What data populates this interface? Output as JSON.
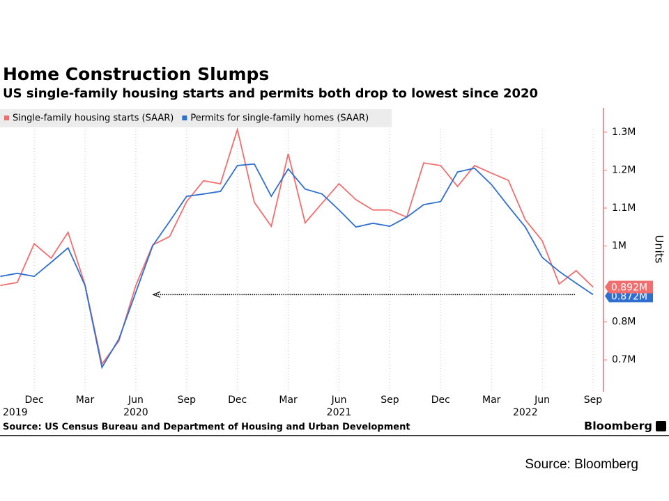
{
  "chart_data": {
    "type": "line",
    "title": "Home Construction Slumps",
    "subtitle": "US single-family housing starts and permits both drop to lowest since 2020",
    "y_axis_label": "Units",
    "source": "Source: US Census Bureau and Department of Housing and Urban Development",
    "brand": "Bloomberg",
    "footer_note": "Source: Bloomberg",
    "x": [
      "2019-10",
      "2019-11",
      "2019-12",
      "2020-01",
      "2020-02",
      "2020-03",
      "2020-04",
      "2020-05",
      "2020-06",
      "2020-07",
      "2020-08",
      "2020-09",
      "2020-10",
      "2020-11",
      "2020-12",
      "2021-01",
      "2021-02",
      "2021-03",
      "2021-04",
      "2021-05",
      "2021-06",
      "2021-07",
      "2021-08",
      "2021-09",
      "2021-10",
      "2021-11",
      "2021-12",
      "2022-01",
      "2022-02",
      "2022-03",
      "2022-04",
      "2022-05",
      "2022-06",
      "2022-07",
      "2022-08",
      "2022-09"
    ],
    "xticks": [
      {
        "value": "2019-12",
        "label": "Dec"
      },
      {
        "value": "2020-03",
        "label": "Mar"
      },
      {
        "value": "2020-06",
        "label": "Jun"
      },
      {
        "value": "2020-09",
        "label": "Sep"
      },
      {
        "value": "2020-12",
        "label": "Dec"
      },
      {
        "value": "2021-03",
        "label": "Mar"
      },
      {
        "value": "2021-06",
        "label": "Jun"
      },
      {
        "value": "2021-09",
        "label": "Sep"
      },
      {
        "value": "2021-12",
        "label": "Dec"
      },
      {
        "value": "2022-03",
        "label": "Mar"
      },
      {
        "value": "2022-06",
        "label": "Jun"
      },
      {
        "value": "2022-09",
        "label": "Sep"
      }
    ],
    "year_labels": [
      {
        "value": "2019-10",
        "label": "2019"
      },
      {
        "value": "2020-06",
        "label": "2020"
      },
      {
        "value": "2021-06",
        "label": "2021"
      },
      {
        "value": "2022-05",
        "label": "2022"
      }
    ],
    "ylim": [
      0.616,
      1.364
    ],
    "yticks": [
      {
        "value": 0.7,
        "label": "0.7M"
      },
      {
        "value": 0.8,
        "label": "0.8M"
      },
      {
        "value": 1,
        "label": "1M"
      },
      {
        "value": 1.1,
        "label": "1.1M"
      },
      {
        "value": 1.2,
        "label": "1.2M"
      },
      {
        "value": 1.3,
        "label": "1.3M"
      }
    ],
    "grid": "x",
    "series": [
      {
        "name": "Single-family housing starts (SAAR)",
        "color": "#f26d6d",
        "values": [
          0.896,
          0.904,
          1.006,
          0.968,
          1.036,
          0.898,
          0.689,
          0.75,
          0.896,
          1.003,
          1.025,
          1.117,
          1.172,
          1.164,
          1.307,
          1.115,
          1.052,
          1.243,
          1.061,
          1.113,
          1.164,
          1.122,
          1.095,
          1.095,
          1.076,
          1.219,
          1.212,
          1.157,
          1.212,
          1.192,
          1.173,
          1.069,
          1.014,
          0.9,
          0.935,
          0.892
        ],
        "value_labels": [
          null,
          null,
          null,
          null,
          null,
          null,
          null,
          null,
          null,
          null,
          null,
          null,
          null,
          null,
          null,
          null,
          null,
          null,
          null,
          null,
          null,
          null,
          null,
          null,
          null,
          null,
          null,
          null,
          null,
          null,
          null,
          null,
          null,
          null,
          null,
          "0.892M"
        ]
      },
      {
        "name": "Permits for single-family homes (SAAR)",
        "color": "#2f6fcf",
        "values": [
          0.92,
          0.928,
          0.92,
          0.957,
          0.995,
          0.896,
          0.68,
          0.755,
          0.878,
          1.001,
          1.065,
          1.131,
          1.137,
          1.144,
          1.212,
          1.216,
          1.131,
          1.203,
          1.15,
          1.137,
          1.095,
          1.05,
          1.06,
          1.052,
          1.076,
          1.109,
          1.117,
          1.195,
          1.205,
          1.162,
          1.105,
          1.05,
          0.97,
          0.933,
          0.902,
          0.872
        ],
        "value_labels": [
          null,
          null,
          null,
          null,
          null,
          null,
          null,
          null,
          null,
          null,
          null,
          null,
          null,
          null,
          null,
          null,
          null,
          null,
          null,
          null,
          null,
          null,
          null,
          null,
          null,
          null,
          null,
          null,
          null,
          null,
          null,
          null,
          null,
          null,
          null,
          "0.872M"
        ]
      }
    ]
  }
}
